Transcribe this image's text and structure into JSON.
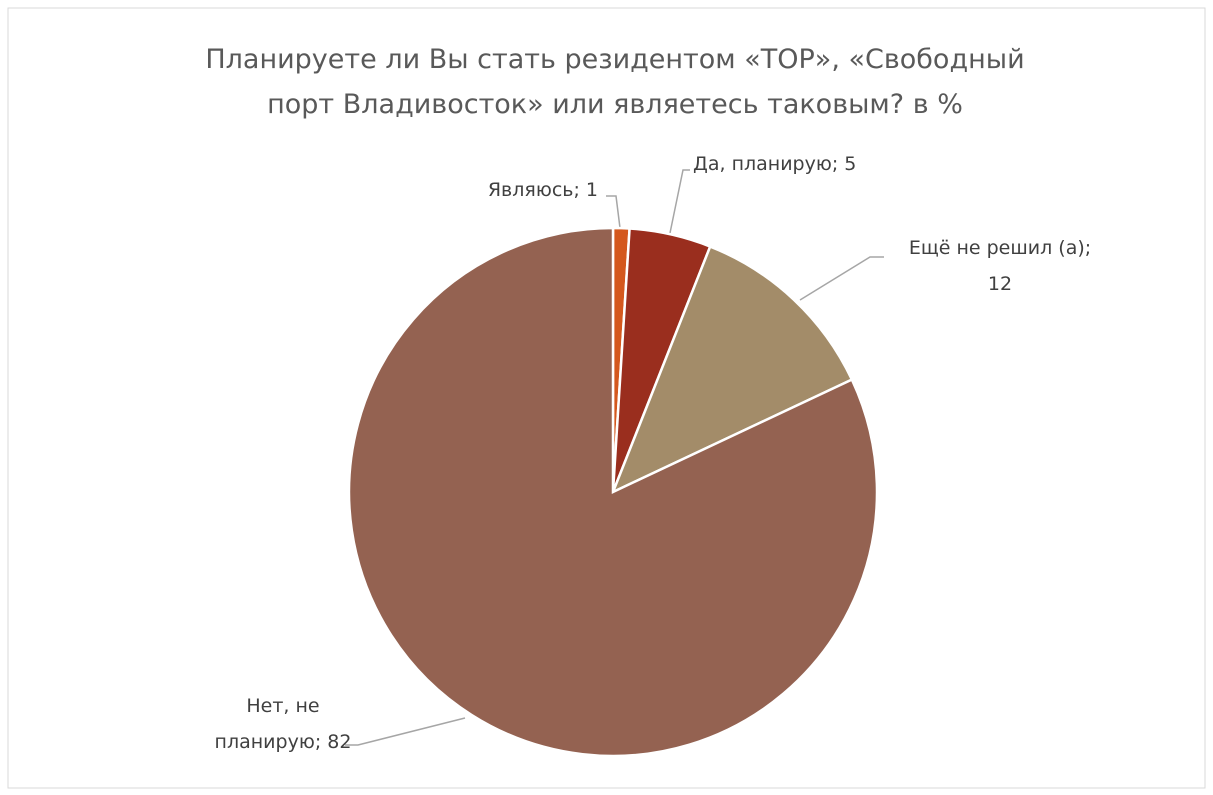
{
  "chart_data": {
    "type": "pie",
    "title": "Планируете ли Вы стать резидентом «ТОР», «Свободный\nпорт Владивосток» или являетесь таковым? в %",
    "values": [
      1,
      5,
      12,
      82
    ],
    "value_labels": [
      "Являюсь; 1",
      "Да, планирую; 5",
      "Ещё не решил (а);\n12",
      "Нет, не\nпланирую; 82"
    ],
    "colors": [
      "#d4581e",
      "#9a2e1e",
      "#a38c69",
      "#946251"
    ]
  }
}
